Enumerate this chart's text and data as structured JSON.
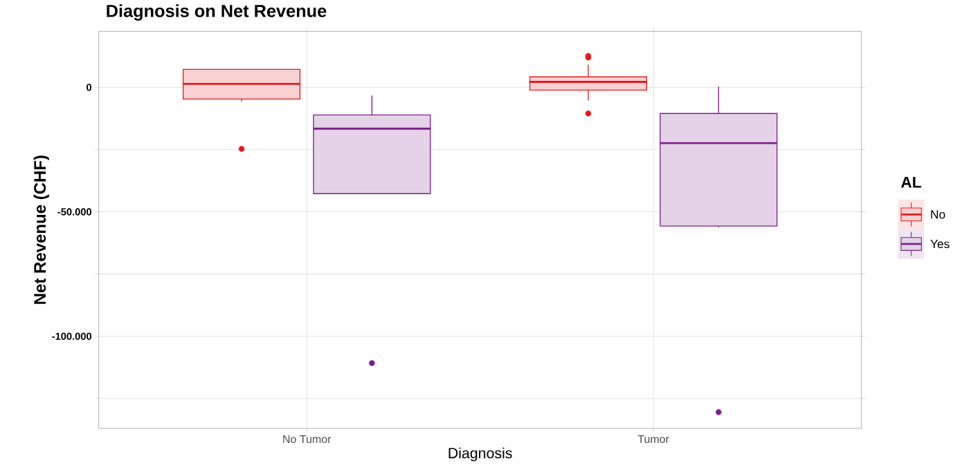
{
  "chart_data": {
    "type": "box",
    "title": "Diagnosis on Net Revenue",
    "xlabel": "Diagnosis",
    "ylabel": "Net Revenue (CHF)",
    "legend_title": "AL",
    "categories": [
      "No Tumor",
      "Tumor"
    ],
    "series": [
      {
        "name": "No",
        "color": "#e41a1c",
        "boxes": [
          {
            "low": -5800,
            "q1": -4700,
            "median": 1400,
            "q3": 7200,
            "high": 7200,
            "outliers": [
              -24700
            ]
          },
          {
            "low": -5300,
            "q1": -1100,
            "median": 2200,
            "q3": 4200,
            "high": 9100,
            "outliers": [
              12000,
              12600,
              -10500
            ]
          }
        ]
      },
      {
        "name": "Yes",
        "color": "#7b1f8c",
        "boxes": [
          {
            "low": -42700,
            "q1": -42700,
            "median": -16600,
            "q3": -11100,
            "high": -3300,
            "outliers": [
              -110800
            ]
          },
          {
            "low": -56200,
            "q1": -55700,
            "median": -22400,
            "q3": -10500,
            "high": 300,
            "outliers": [
              -130500
            ]
          }
        ]
      }
    ],
    "ylim": [
      -137000,
      22500
    ],
    "yticks": [
      {
        "value": -125000,
        "label": null
      },
      {
        "value": -100000,
        "label": "-100.000"
      },
      {
        "value": -75000,
        "label": null
      },
      {
        "value": -50000,
        "label": "-50.000"
      },
      {
        "value": -25000,
        "label": null
      },
      {
        "value": 0,
        "label": "0"
      }
    ],
    "grid": true,
    "legend": "right",
    "marker": "circle"
  }
}
